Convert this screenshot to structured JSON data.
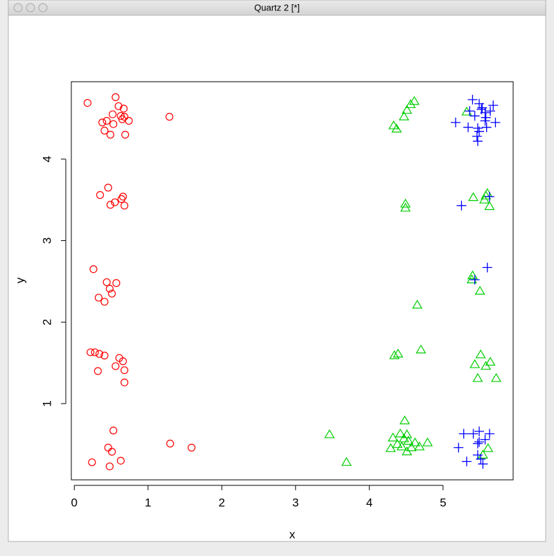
{
  "window": {
    "title": "Quartz 2 [*]"
  },
  "chart_data": {
    "type": "scatter",
    "xlabel": "x",
    "ylabel": "y",
    "xlim": [
      -0.04,
      5.95
    ],
    "ylim": [
      0.065,
      4.95
    ],
    "xticks": [
      0,
      1,
      2,
      3,
      4,
      5
    ],
    "yticks": [
      1,
      2,
      3,
      4
    ],
    "series": [
      {
        "color": "#ff0000",
        "marker": "circle",
        "x": [
          0.18,
          0.56,
          0.6,
          0.67,
          0.52,
          0.44,
          0.63,
          0.68,
          0.38,
          0.74,
          0.53,
          0.65,
          0.41,
          0.49,
          0.69,
          1.29,
          0.46,
          0.35,
          0.66,
          0.64,
          0.55,
          0.49,
          0.68,
          0.26,
          0.44,
          0.57,
          0.48,
          0.51,
          0.33,
          0.41,
          0.22,
          0.28,
          0.34,
          0.41,
          0.61,
          0.66,
          0.56,
          0.68,
          0.32,
          0.68,
          0.53,
          1.3,
          1.59,
          0.46,
          0.51,
          0.24,
          0.63,
          0.48
        ],
        "values": [
          4.69,
          4.76,
          4.65,
          4.62,
          4.55,
          4.47,
          4.53,
          4.52,
          4.45,
          4.47,
          4.43,
          4.49,
          4.35,
          4.3,
          4.3,
          4.52,
          3.65,
          3.56,
          3.54,
          3.51,
          3.47,
          3.44,
          3.43,
          2.65,
          2.49,
          2.48,
          2.41,
          2.35,
          2.3,
          2.25,
          1.63,
          1.63,
          1.61,
          1.59,
          1.56,
          1.52,
          1.46,
          1.41,
          1.4,
          1.26,
          0.67,
          0.51,
          0.46,
          0.46,
          0.41,
          0.28,
          0.3,
          0.23
        ]
      },
      {
        "color": "#00cd00",
        "marker": "triangle",
        "x": [
          4.61,
          4.56,
          4.51,
          4.47,
          4.33,
          4.37,
          5.32,
          5.41,
          5.6,
          5.56,
          5.63,
          4.49,
          4.49,
          5.58,
          5.4,
          5.39,
          5.5,
          4.65,
          4.7,
          4.39,
          4.34,
          5.51,
          5.64,
          5.43,
          5.58,
          5.47,
          5.72,
          3.46,
          3.69,
          4.48,
          4.42,
          4.32,
          4.51,
          4.47,
          4.53,
          4.62,
          4.79,
          4.38,
          4.29,
          4.44,
          4.57,
          4.68,
          4.51,
          5.61,
          5.54
        ],
        "values": [
          4.71,
          4.67,
          4.6,
          4.52,
          4.41,
          4.37,
          4.58,
          3.53,
          3.58,
          3.5,
          3.42,
          3.45,
          3.4,
          3.55,
          2.57,
          2.52,
          2.38,
          2.21,
          1.66,
          1.61,
          1.59,
          1.6,
          1.51,
          1.48,
          1.46,
          1.31,
          1.31,
          0.62,
          0.28,
          0.79,
          0.63,
          0.58,
          0.62,
          0.57,
          0.54,
          0.52,
          0.52,
          0.5,
          0.45,
          0.47,
          0.46,
          0.47,
          0.41,
          0.45,
          0.37
        ]
      },
      {
        "color": "#0000ff",
        "marker": "plus",
        "x": [
          5.4,
          5.49,
          5.68,
          5.53,
          5.64,
          5.36,
          5.57,
          5.43,
          5.58,
          5.17,
          5.71,
          5.34,
          5.59,
          5.47,
          5.49,
          5.46,
          5.47,
          5.52,
          5.57,
          5.25,
          5.63,
          5.6,
          5.43,
          5.28,
          5.41,
          5.49,
          5.63,
          5.57,
          5.47,
          5.49,
          5.21,
          5.47,
          5.32,
          5.51,
          5.54
        ],
        "values": [
          4.73,
          4.68,
          4.66,
          4.63,
          4.59,
          4.59,
          4.57,
          4.53,
          4.51,
          4.45,
          4.45,
          4.39,
          4.39,
          4.38,
          4.34,
          4.28,
          4.22,
          4.61,
          4.47,
          3.43,
          3.54,
          2.67,
          2.52,
          0.63,
          0.63,
          0.66,
          0.63,
          0.56,
          0.51,
          0.53,
          0.46,
          0.37,
          0.29,
          0.32,
          0.26
        ]
      }
    ]
  }
}
